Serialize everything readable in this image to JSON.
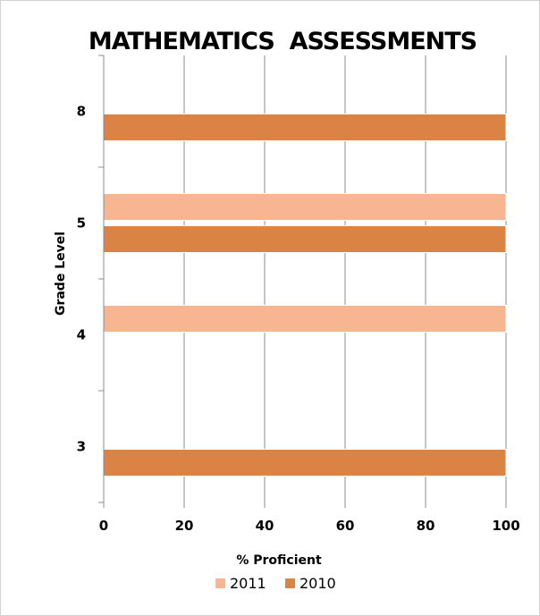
{
  "chart_data": {
    "type": "bar",
    "orientation": "horizontal",
    "title": "MATHEMATICS  ASSESSMENTS",
    "xlabel": "% Proficient",
    "ylabel": "Grade Level",
    "categories": [
      "3",
      "4",
      "5",
      "8"
    ],
    "xlim": [
      0,
      100
    ],
    "xticks": [
      "0",
      "20",
      "40",
      "60",
      "80",
      "100"
    ],
    "grid": "vertical",
    "legend_position": "bottom",
    "series": [
      {
        "name": "2011",
        "color": "#f7b592",
        "values": [
          null,
          100,
          100,
          null
        ]
      },
      {
        "name": "2010",
        "color": "#da8344",
        "values": [
          100,
          null,
          100,
          100
        ]
      }
    ]
  }
}
